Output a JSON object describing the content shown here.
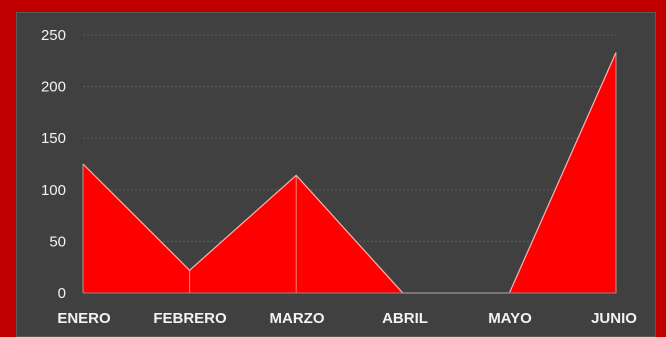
{
  "chart_data": {
    "type": "area",
    "categories": [
      "ENERO",
      "FEBRERO",
      "MARZO",
      "ABRIL",
      "MAYO",
      "JUNIO"
    ],
    "values": [
      125,
      22,
      114,
      0,
      0,
      233
    ],
    "y_ticks": [
      "0",
      "50",
      "100",
      "150",
      "200",
      "250"
    ],
    "ylim": [
      0,
      250
    ],
    "grid": true,
    "title": "",
    "xlabel": "",
    "ylabel": "",
    "colors": {
      "frame": "#c00000",
      "panel": "#404040",
      "area": "#ff0000",
      "outline": "#ffb0b0",
      "grid": "#5e5e5e",
      "text": "#f2f2f2"
    }
  }
}
